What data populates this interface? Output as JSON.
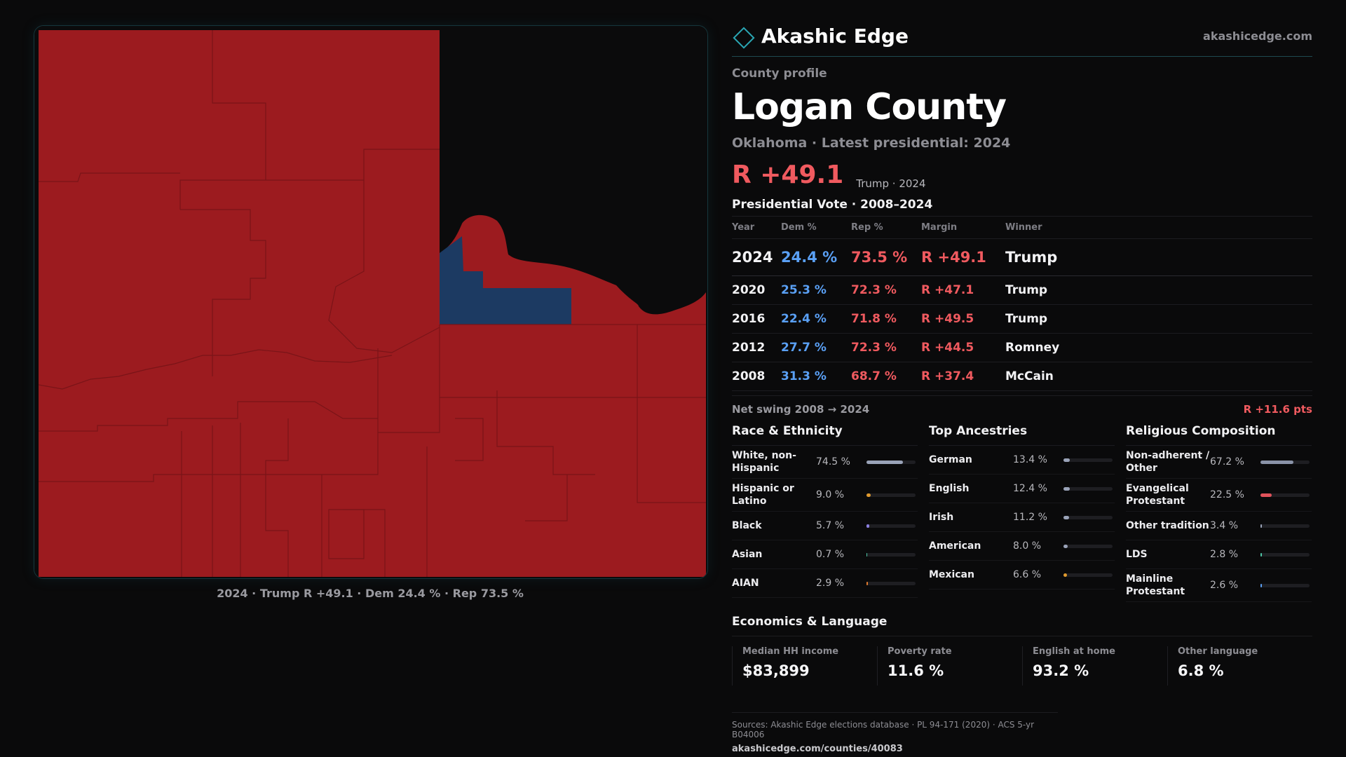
{
  "brand": {
    "name": "Akashic Edge",
    "url": "akashicedge.com"
  },
  "profile": {
    "eyebrow": "County profile",
    "county": "Logan County",
    "subtitle": "Oklahoma · Latest presidential: 2024",
    "margin": "R +49.1",
    "margin_note": "Trump · 2024"
  },
  "map": {
    "caption": "2024 · Trump R +49.1 · Dem 24.4 % · Rep 73.5 %",
    "colors": {
      "rep": "#9c1b1f",
      "dem": "#1c3a62",
      "outside": "#0b0b0c",
      "border": "#7a1418"
    }
  },
  "votes": {
    "heading": "Presidential Vote · 2008–2024",
    "columns": [
      "Year",
      "Dem %",
      "Rep %",
      "Margin",
      "Winner"
    ],
    "rows": [
      {
        "year": "2024",
        "dem": "24.4 %",
        "rep": "73.5 %",
        "margin": "R +49.1",
        "winner": "Trump"
      },
      {
        "year": "2020",
        "dem": "25.3 %",
        "rep": "72.3 %",
        "margin": "R +47.1",
        "winner": "Trump"
      },
      {
        "year": "2016",
        "dem": "22.4 %",
        "rep": "71.8 %",
        "margin": "R +49.5",
        "winner": "Trump"
      },
      {
        "year": "2012",
        "dem": "27.7 %",
        "rep": "72.3 %",
        "margin": "R +44.5",
        "winner": "Romney"
      },
      {
        "year": "2008",
        "dem": "31.3 %",
        "rep": "68.7 %",
        "margin": "R +37.4",
        "winner": "McCain"
      }
    ],
    "swing_label": "Net swing 2008 → 2024",
    "swing_value": "R +11.6 pts"
  },
  "race": {
    "title": "Race & Ethnicity",
    "items": [
      {
        "name": "White, non-Hispanic",
        "pct": "74.5 %",
        "level": 0.745,
        "color": "#9aa3b8"
      },
      {
        "name": "Hispanic or Latino",
        "pct": "9.0 %",
        "level": 0.09,
        "color": "#e09a2e"
      },
      {
        "name": "Black",
        "pct": "5.7 %",
        "level": 0.057,
        "color": "#8b7fe0"
      },
      {
        "name": "Asian",
        "pct": "0.7 %",
        "level": 0.007,
        "color": "#4ec9a8"
      },
      {
        "name": "AIAN",
        "pct": "2.9 %",
        "level": 0.029,
        "color": "#e07a2e"
      }
    ]
  },
  "ancestry": {
    "title": "Top Ancestries",
    "items": [
      {
        "name": "German",
        "pct": "13.4 %",
        "level": 0.134,
        "color": "#9aa3b8"
      },
      {
        "name": "English",
        "pct": "12.4 %",
        "level": 0.124,
        "color": "#9aa3b8"
      },
      {
        "name": "Irish",
        "pct": "11.2 %",
        "level": 0.112,
        "color": "#9aa3b8"
      },
      {
        "name": "American",
        "pct": "8.0 %",
        "level": 0.08,
        "color": "#9aa3b8"
      },
      {
        "name": "Mexican",
        "pct": "6.6 %",
        "level": 0.066,
        "color": "#e09a2e"
      }
    ]
  },
  "religion": {
    "title": "Religious Composition",
    "items": [
      {
        "name": "Non-adherent / Other",
        "pct": "67.2 %",
        "level": 0.672,
        "color": "#8a93a8"
      },
      {
        "name": "Evangelical Protestant",
        "pct": "22.5 %",
        "level": 0.225,
        "color": "#e0525a"
      },
      {
        "name": "Other tradition",
        "pct": "3.4 %",
        "level": 0.034,
        "color": "#9aa3b8"
      },
      {
        "name": "LDS",
        "pct": "2.8 %",
        "level": 0.028,
        "color": "#4ec9a8"
      },
      {
        "name": "Mainline Protestant",
        "pct": "2.6 %",
        "level": 0.026,
        "color": "#5aa0f5"
      }
    ]
  },
  "economics": {
    "title": "Economics & Language",
    "cells": [
      {
        "label": "Median HH income",
        "value": "$83,899"
      },
      {
        "label": "Poverty rate",
        "value": "11.6 %"
      },
      {
        "label": "English at home",
        "value": "93.2 %"
      },
      {
        "label": "Other language",
        "value": "6.8 %"
      }
    ]
  },
  "footer": {
    "sources": "Sources: Akashic Edge elections database · PL 94-171 (2020) · ACS 5-yr B04006",
    "url": "akashicedge.com/counties/40083"
  }
}
